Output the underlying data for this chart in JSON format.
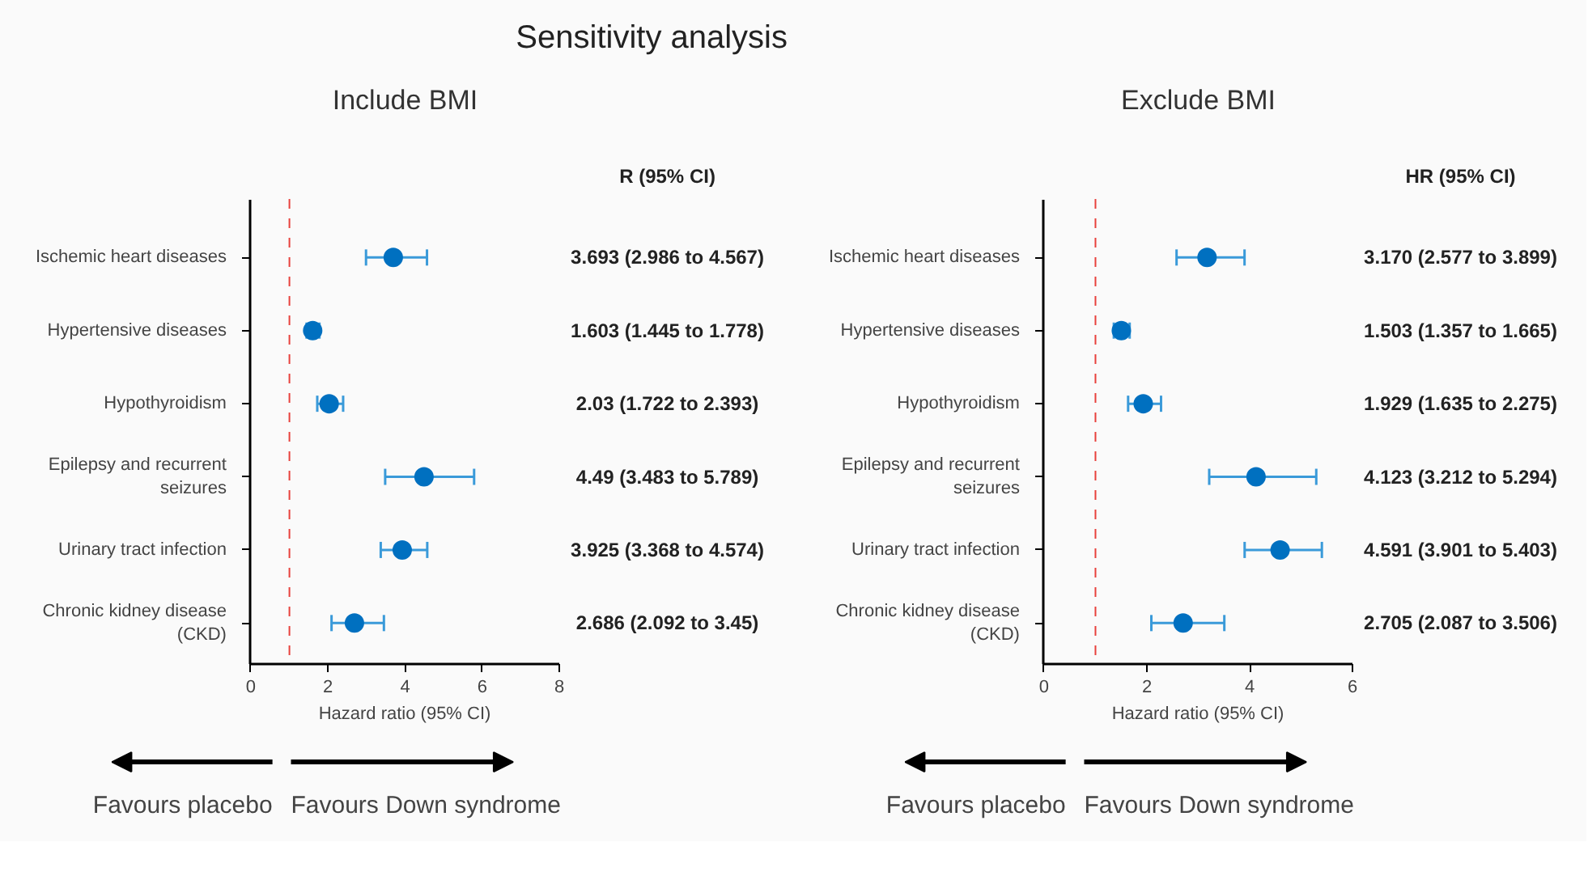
{
  "chart_data": [
    {
      "type": "scatter",
      "orientation": "horizontal",
      "title": "Sensitivity analysis",
      "subtitle": "Include BMI",
      "xlabel": "Hazard ratio (95% CI)",
      "categories": [
        "Ischemic heart diseases",
        "Hypertensive diseases",
        "Hypothyroidism",
        "Epilepsy and recurrent seizures",
        "Urinary tract infection",
        "Chronic kidney disease (CKD)"
      ],
      "series": [
        {
          "color": "#0070c0",
          "values": [
            3.693,
            1.603,
            2.03,
            4.49,
            3.925,
            2.686
          ],
          "errors": [
            [
              2.986,
              4.567
            ],
            [
              1.445,
              1.778
            ],
            [
              1.722,
              2.393
            ],
            [
              3.483,
              5.789
            ],
            [
              3.368,
              4.574
            ],
            [
              2.092,
              3.45
            ]
          ],
          "value_labels": [
            "3.693 (2.986 to 4.567)",
            "1.603 (1.445 to 1.778)",
            "2.03 (1.722 to 2.393)",
            "4.49 (3.483 to 5.789)",
            "3.925 (3.368 to 4.574)",
            "2.686 (2.092 to 3.45)"
          ]
        }
      ],
      "xlim": [
        0,
        8
      ],
      "xticks": [
        0,
        2,
        4,
        6,
        8
      ],
      "grid": false,
      "marker": "circle",
      "ref_lines": [
        {
          "axis": "x",
          "value": 1,
          "color": "#e8413c",
          "line_style": "dashed"
        }
      ],
      "annotations": [
        "R (95% CI)",
        "Favours placebo",
        "Favours Down syndrome"
      ]
    },
    {
      "type": "scatter",
      "orientation": "horizontal",
      "subtitle": "Exclude BMI",
      "xlabel": "Hazard ratio (95% CI)",
      "categories": [
        "Ischemic heart diseases",
        "Hypertensive diseases",
        "Hypothyroidism",
        "Epilepsy and recurrent seizures",
        "Urinary tract infection",
        "Chronic kidney disease (CKD)"
      ],
      "series": [
        {
          "color": "#0070c0",
          "values": [
            3.17,
            1.503,
            1.929,
            4.123,
            4.591,
            2.705
          ],
          "errors": [
            [
              2.577,
              3.899
            ],
            [
              1.357,
              1.665
            ],
            [
              1.635,
              2.275
            ],
            [
              3.212,
              5.294
            ],
            [
              3.901,
              5.403
            ],
            [
              2.087,
              3.506
            ]
          ],
          "value_labels": [
            "3.170 (2.577 to 3.899)",
            "1.503 (1.357 to 1.665)",
            "1.929 (1.635 to 2.275)",
            "4.123 (3.212 to 5.294)",
            "4.591 (3.901 to 5.403)",
            "2.705 (2.087 to 3.506)"
          ]
        }
      ],
      "xlim": [
        0,
        6
      ],
      "xticks": [
        0,
        2,
        4,
        6
      ],
      "grid": false,
      "marker": "circle",
      "ref_lines": [
        {
          "axis": "x",
          "value": 1,
          "color": "#e8413c",
          "line_style": "dashed"
        }
      ],
      "annotations": [
        "HR (95% CI)",
        "Favours placebo",
        "Favours Down syndrome"
      ]
    }
  ]
}
